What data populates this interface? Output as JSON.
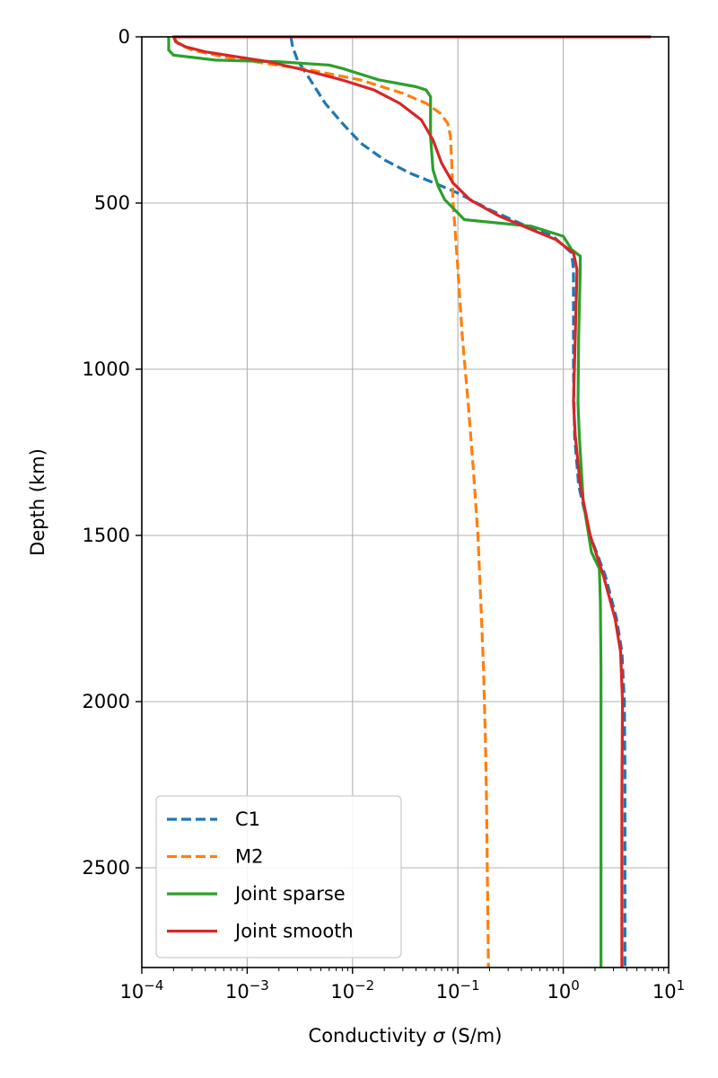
{
  "chart_data": {
    "type": "line",
    "title": "",
    "xlabel": "Conductivity σ (S/m)",
    "ylabel": "Depth (km)",
    "x_scale": "log",
    "xlim": [
      0.0001,
      10
    ],
    "ylim": [
      2800,
      0
    ],
    "y_inverted": true,
    "x_ticks": [
      {
        "value": 0.0001,
        "base": "10",
        "exp": "−4"
      },
      {
        "value": 0.001,
        "base": "10",
        "exp": "−3"
      },
      {
        "value": 0.01,
        "base": "10",
        "exp": "−2"
      },
      {
        "value": 0.1,
        "base": "10",
        "exp": "−1"
      },
      {
        "value": 1,
        "base": "10",
        "exp": "0"
      },
      {
        "value": 10,
        "base": "10",
        "exp": "1"
      }
    ],
    "y_ticks": [
      {
        "value": 0,
        "label": "0"
      },
      {
        "value": 500,
        "label": "500"
      },
      {
        "value": 1000,
        "label": "1000"
      },
      {
        "value": 1500,
        "label": "1500"
      },
      {
        "value": 2000,
        "label": "2000"
      },
      {
        "value": 2500,
        "label": "2500"
      }
    ],
    "grid": true,
    "legend_position": "lower-left",
    "series": [
      {
        "name": "C1",
        "color": "#1f77b4",
        "style": "dashed",
        "points": [
          [
            0.0026,
            0
          ],
          [
            0.0027,
            30
          ],
          [
            0.003,
            70
          ],
          [
            0.0038,
            120
          ],
          [
            0.0055,
            200
          ],
          [
            0.008,
            260
          ],
          [
            0.012,
            320
          ],
          [
            0.02,
            370
          ],
          [
            0.035,
            410
          ],
          [
            0.06,
            440
          ],
          [
            0.1,
            470
          ],
          [
            0.2,
            520
          ],
          [
            0.45,
            570
          ],
          [
            0.8,
            600
          ],
          [
            1.2,
            650
          ],
          [
            1.25,
            700
          ],
          [
            1.25,
            800
          ],
          [
            1.25,
            900
          ],
          [
            1.25,
            1000
          ],
          [
            1.28,
            1200
          ],
          [
            1.4,
            1350
          ],
          [
            1.8,
            1500
          ],
          [
            2.5,
            1620
          ],
          [
            3.2,
            1750
          ],
          [
            3.6,
            1850
          ],
          [
            3.8,
            2000
          ],
          [
            3.85,
            2200
          ],
          [
            3.85,
            2500
          ],
          [
            3.85,
            2800
          ]
        ]
      },
      {
        "name": "M2",
        "color": "#ff7f0e",
        "style": "dashed",
        "points": [
          [
            0.0002,
            0
          ],
          [
            0.00022,
            20
          ],
          [
            0.0003,
            40
          ],
          [
            0.0006,
            60
          ],
          [
            0.0015,
            80
          ],
          [
            0.004,
            100
          ],
          [
            0.012,
            130
          ],
          [
            0.03,
            170
          ],
          [
            0.05,
            200
          ],
          [
            0.068,
            230
          ],
          [
            0.08,
            260
          ],
          [
            0.085,
            300
          ],
          [
            0.088,
            400
          ],
          [
            0.09,
            500
          ],
          [
            0.095,
            600
          ],
          [
            0.1,
            700
          ],
          [
            0.11,
            900
          ],
          [
            0.125,
            1100
          ],
          [
            0.14,
            1300
          ],
          [
            0.155,
            1500
          ],
          [
            0.165,
            1700
          ],
          [
            0.175,
            1900
          ],
          [
            0.182,
            2100
          ],
          [
            0.187,
            2300
          ],
          [
            0.19,
            2500
          ],
          [
            0.195,
            2800
          ]
        ]
      },
      {
        "name": "Joint sparse",
        "color": "#2ca02c",
        "style": "solid",
        "points": [
          [
            0.00018,
            0
          ],
          [
            0.00018,
            40
          ],
          [
            0.0002,
            55
          ],
          [
            0.0005,
            70
          ],
          [
            0.002,
            75
          ],
          [
            0.006,
            85
          ],
          [
            0.008,
            95
          ],
          [
            0.018,
            130
          ],
          [
            0.04,
            150
          ],
          [
            0.05,
            160
          ],
          [
            0.055,
            180
          ],
          [
            0.055,
            300
          ],
          [
            0.058,
            400
          ],
          [
            0.065,
            450
          ],
          [
            0.075,
            490
          ],
          [
            0.1,
            530
          ],
          [
            0.115,
            550
          ],
          [
            0.5,
            570
          ],
          [
            1,
            600
          ],
          [
            1.2,
            640
          ],
          [
            1.45,
            660
          ],
          [
            1.45,
            700
          ],
          [
            1.4,
            900
          ],
          [
            1.38,
            1100
          ],
          [
            1.42,
            1200
          ],
          [
            1.55,
            1400
          ],
          [
            1.85,
            1550
          ],
          [
            2.2,
            1600
          ],
          [
            2.25,
            1700
          ],
          [
            2.28,
            1900
          ],
          [
            2.28,
            2200
          ],
          [
            2.28,
            2500
          ],
          [
            2.28,
            2800
          ]
        ]
      },
      {
        "name": "Joint smooth",
        "color": "#d62728",
        "style": "solid",
        "points": [
          [
            6.8,
            0
          ],
          [
            0.0002,
            0
          ],
          [
            0.00021,
            15
          ],
          [
            0.00026,
            30
          ],
          [
            0.0004,
            45
          ],
          [
            0.0008,
            60
          ],
          [
            0.0016,
            75
          ],
          [
            0.0035,
            100
          ],
          [
            0.008,
            130
          ],
          [
            0.016,
            160
          ],
          [
            0.028,
            200
          ],
          [
            0.045,
            250
          ],
          [
            0.058,
            310
          ],
          [
            0.07,
            380
          ],
          [
            0.09,
            440
          ],
          [
            0.13,
            490
          ],
          [
            0.25,
            540
          ],
          [
            0.5,
            580
          ],
          [
            0.85,
            610
          ],
          [
            1.25,
            650
          ],
          [
            1.35,
            700
          ],
          [
            1.3,
            900
          ],
          [
            1.25,
            1100
          ],
          [
            1.3,
            1200
          ],
          [
            1.45,
            1350
          ],
          [
            1.8,
            1500
          ],
          [
            2.4,
            1620
          ],
          [
            3.1,
            1750
          ],
          [
            3.5,
            1850
          ],
          [
            3.65,
            2000
          ],
          [
            3.6,
            2300
          ],
          [
            3.6,
            2500
          ],
          [
            3.6,
            2800
          ]
        ]
      }
    ]
  }
}
